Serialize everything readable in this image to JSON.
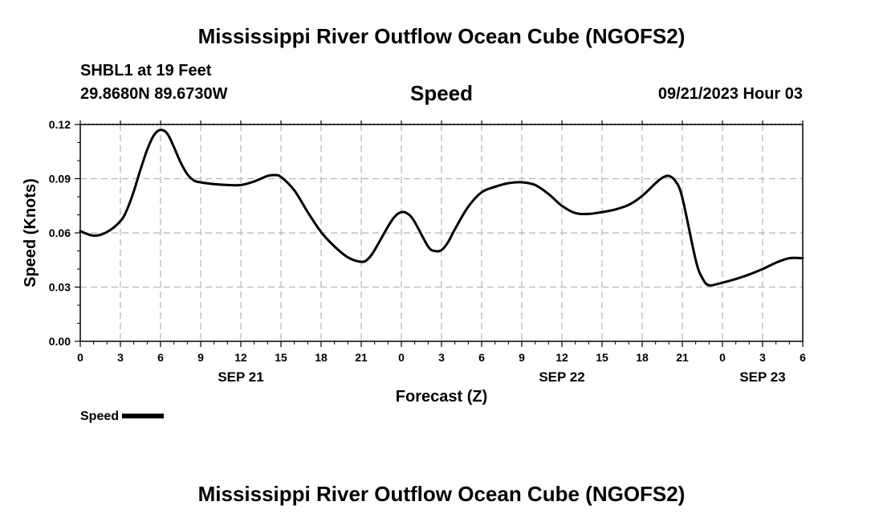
{
  "header": {
    "title": "Mississippi River Outflow Ocean Cube (NGOFS2)",
    "station": "SHBL1 at 19 Feet",
    "coords": "29.8680N  89.6730W",
    "datetime": "09/21/2023 Hour 03"
  },
  "footer": {
    "title": "Mississippi River Outflow Ocean Cube (NGOFS2)"
  },
  "chart_data": {
    "type": "line",
    "title": "Speed",
    "xlabel": "Forecast (Z)",
    "ylabel": "Speed (Knots)",
    "xlim": [
      0,
      54
    ],
    "ylim": [
      0,
      0.12
    ],
    "y_ticks": [
      "0.00",
      "0.03",
      "0.06",
      "0.09",
      "0.12"
    ],
    "x_ticks": [
      "0",
      "3",
      "6",
      "9",
      "12",
      "15",
      "18",
      "21",
      "0",
      "3",
      "6",
      "9",
      "12",
      "15",
      "18",
      "21",
      "0",
      "3",
      "6"
    ],
    "day_labels": [
      {
        "label": "SEP 21",
        "hour": 12
      },
      {
        "label": "SEP 22",
        "hour": 36
      },
      {
        "label": "SEP 23",
        "hour": 51
      }
    ],
    "grid": true,
    "line_color": "#000000",
    "series": [
      {
        "name": "Speed",
        "x": [
          0,
          1,
          2,
          3,
          3.5,
          4,
          4.5,
          5,
          5.5,
          6,
          6.5,
          7,
          7.5,
          8,
          8.5,
          9,
          10,
          11,
          12,
          13,
          14,
          14.5,
          15,
          16,
          17,
          18,
          19,
          20,
          21,
          21.5,
          22,
          23,
          23.5,
          24,
          24.5,
          25,
          26,
          26.5,
          27,
          27.5,
          28,
          29,
          30,
          31,
          32,
          33,
          34,
          35,
          36,
          37,
          38,
          39,
          40,
          41,
          42,
          43,
          43.5,
          44,
          44.5,
          45,
          46,
          46.5,
          47,
          48,
          49,
          50,
          51,
          52,
          53,
          54
        ],
        "values": [
          0.061,
          0.0585,
          0.0605,
          0.0665,
          0.073,
          0.083,
          0.095,
          0.106,
          0.114,
          0.117,
          0.115,
          0.1075,
          0.099,
          0.0925,
          0.089,
          0.088,
          0.087,
          0.0865,
          0.0865,
          0.0885,
          0.0915,
          0.092,
          0.091,
          0.0835,
          0.0715,
          0.0605,
          0.0525,
          0.0465,
          0.044,
          0.0455,
          0.0505,
          0.0635,
          0.069,
          0.0715,
          0.0705,
          0.066,
          0.0525,
          0.05,
          0.0505,
          0.055,
          0.062,
          0.0745,
          0.0825,
          0.0855,
          0.0875,
          0.088,
          0.0865,
          0.0815,
          0.075,
          0.071,
          0.0705,
          0.0715,
          0.073,
          0.0755,
          0.0805,
          0.0875,
          0.0905,
          0.0915,
          0.0885,
          0.0795,
          0.045,
          0.035,
          0.031,
          0.0325,
          0.0345,
          0.037,
          0.04,
          0.0435,
          0.046,
          0.046
        ]
      }
    ],
    "legend": {
      "label": "Speed",
      "position": "bottom-left"
    }
  }
}
